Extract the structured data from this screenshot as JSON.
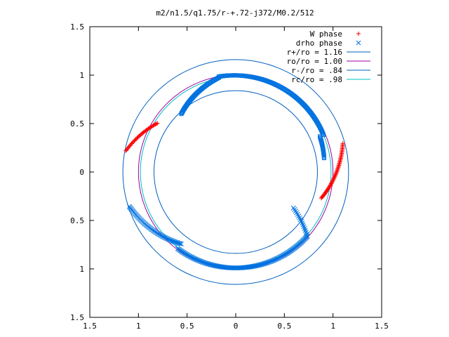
{
  "chart_data": {
    "type": "scatter",
    "title": "m2/n1.5/q1.75/r-+.72-j372/M0.2/512",
    "xlim": [
      -1.5,
      1.5
    ],
    "ylim": [
      -1.5,
      1.5
    ],
    "x_tick_labels": [
      "1.5",
      "1",
      "0.5",
      "0",
      "0.5",
      "1",
      "1.5"
    ],
    "y_tick_labels": [
      "1.5",
      "1",
      "0.5",
      "0",
      "0.5",
      "1",
      "1.5"
    ],
    "grid": false,
    "legend_position": "top-right",
    "series": [
      {
        "name": "W phase",
        "kind": "points",
        "marker": "plus",
        "color": "#ff0000",
        "segments": [
          {
            "start_deg": 148,
            "end_deg": 169,
            "r_start": 0.95,
            "r_end": 1.15
          },
          {
            "start_deg": 343,
            "end_deg": 375,
            "r_start": 0.92,
            "r_end": 1.14
          }
        ]
      },
      {
        "name": "drho phase",
        "kind": "points",
        "marker": "x",
        "color": "#0072e0",
        "segments": [
          {
            "start_deg": 198,
            "end_deg": 233,
            "r_start": 1.15,
            "r_end": 0.93
          },
          {
            "start_deg": 233,
            "end_deg": 318,
            "r_start": 0.99,
            "r_end": 0.99
          },
          {
            "start_deg": 318,
            "end_deg": 328,
            "r_start": 0.99,
            "r_end": 0.7
          }
        ]
      },
      {
        "name": "drho phase",
        "kind": "points",
        "marker": "square",
        "color": "#0072e0",
        "segments": [
          {
            "start_deg": 9,
            "end_deg": 23,
            "r_start": 0.92,
            "r_end": 0.94
          },
          {
            "start_deg": 23,
            "end_deg": 100,
            "r_start": 0.98,
            "r_end": 1.0
          },
          {
            "start_deg": 100,
            "end_deg": 133,
            "r_start": 0.99,
            "r_end": 0.82
          }
        ]
      },
      {
        "name": "r+/ro = 1.16",
        "kind": "circle",
        "radius": 1.16,
        "color": "#0060c0"
      },
      {
        "name": "ro/ro = 1.00",
        "kind": "circle",
        "radius": 1.0,
        "color": "#a000a0"
      },
      {
        "name": "r-/ro = .84",
        "kind": "circle",
        "radius": 0.84,
        "color": "#0060c0"
      },
      {
        "name": "rc/ro = .98",
        "kind": "circle",
        "radius": 0.98,
        "color": "#00c0c0"
      }
    ]
  }
}
